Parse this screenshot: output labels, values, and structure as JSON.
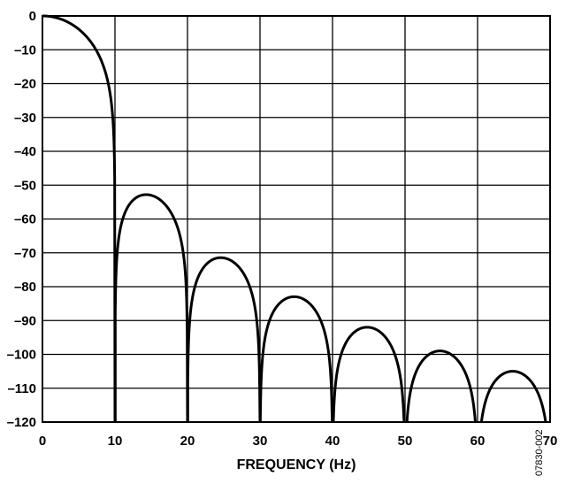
{
  "chart_data": {
    "type": "line",
    "title": "",
    "xlabel": "FREQUENCY (Hz)",
    "ylabel": "",
    "xlim": [
      0,
      70
    ],
    "ylim": [
      -120,
      0
    ],
    "grid": true,
    "x_ticks": [
      "0",
      "10",
      "20",
      "30",
      "40",
      "50",
      "60",
      "70"
    ],
    "y_ticks": [
      "0",
      "–10",
      "–20",
      "–30",
      "–40",
      "–50",
      "–60",
      "–70",
      "–80",
      "–90",
      "–100",
      "–110",
      "–120"
    ],
    "series": [
      {
        "nulls_hz": [
          10,
          20,
          30,
          40,
          50,
          60,
          70
        ],
        "peaks": [
          {
            "x": 0,
            "y": 0
          },
          {
            "x": 14.6,
            "y": -53
          },
          {
            "x": 24.8,
            "y": -71.5
          },
          {
            "x": 34.9,
            "y": -83
          },
          {
            "x": 44.9,
            "y": -92
          },
          {
            "x": 54.9,
            "y": -99
          },
          {
            "x": 64.9,
            "y": -105
          }
        ],
        "color": "#000000"
      }
    ]
  },
  "figure_id": "07830-002"
}
